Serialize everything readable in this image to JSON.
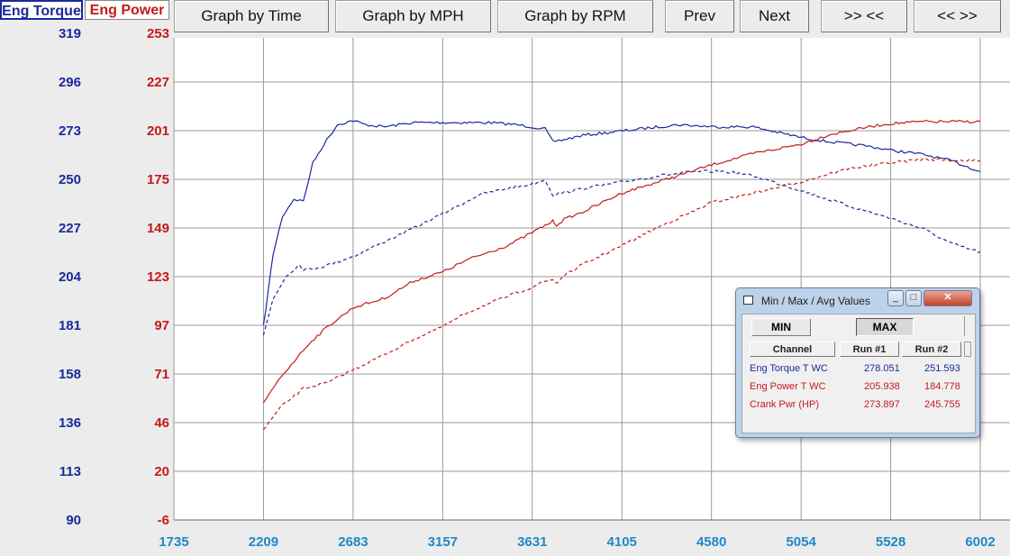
{
  "axis_tabs": {
    "torque": "Eng Torque",
    "power": "Eng Power"
  },
  "toolbar": {
    "graph_time": "Graph by Time",
    "graph_mph": "Graph by MPH",
    "graph_rpm": "Graph by RPM",
    "prev": "Prev",
    "next": "Next",
    "zoom_in": ">> <<",
    "zoom_out": "<< >>"
  },
  "colors": {
    "torque": "#1a2a9a",
    "power": "#c41a1a",
    "xtick": "#1e88c8",
    "grid": "#9a9a9a",
    "plot_bg": "#ffffff"
  },
  "chart_data": {
    "type": "line",
    "xlabel": "",
    "x_ticks": [
      "1735",
      "2209",
      "2683",
      "3157",
      "3631",
      "4105",
      "4580",
      "5054",
      "5528",
      "6002"
    ],
    "xlim": [
      1735,
      6002
    ],
    "y_left": {
      "label": "Eng Torque",
      "ticks": [
        "319",
        "296",
        "273",
        "250",
        "227",
        "204",
        "181",
        "158",
        "136",
        "113",
        "90"
      ],
      "ylim": [
        90,
        319
      ]
    },
    "y_right": {
      "label": "Eng Power",
      "ticks": [
        "253",
        "227",
        "201",
        "175",
        "149",
        "123",
        "97",
        "71",
        "46",
        "20",
        "-6"
      ],
      "ylim": [
        -6,
        253
      ]
    },
    "grid": true,
    "series": [
      {
        "name": "Eng Torque T WC",
        "run": "Run #1",
        "axis": "left",
        "style": "solid",
        "color": "#1a2a9a",
        "points": [
          [
            2209,
            181
          ],
          [
            2260,
            215
          ],
          [
            2310,
            233
          ],
          [
            2370,
            241
          ],
          [
            2420,
            240
          ],
          [
            2470,
            258
          ],
          [
            2530,
            267
          ],
          [
            2600,
            276
          ],
          [
            2683,
            278
          ],
          [
            2750,
            276
          ],
          [
            2850,
            275
          ],
          [
            3000,
            277
          ],
          [
            3200,
            277
          ],
          [
            3400,
            277
          ],
          [
            3550,
            276
          ],
          [
            3700,
            274
          ],
          [
            3740,
            268
          ],
          [
            3800,
            269
          ],
          [
            3900,
            271
          ],
          [
            4000,
            272
          ],
          [
            4200,
            274
          ],
          [
            4400,
            276
          ],
          [
            4600,
            275
          ],
          [
            4800,
            275
          ],
          [
            4900,
            273
          ],
          [
            5054,
            270
          ],
          [
            5200,
            268
          ],
          [
            5400,
            266
          ],
          [
            5528,
            264
          ],
          [
            5700,
            262
          ],
          [
            5850,
            259
          ],
          [
            6002,
            254
          ]
        ]
      },
      {
        "name": "Eng Torque T WC",
        "run": "Run #2",
        "axis": "left",
        "style": "dashed",
        "color": "#1a2a9a",
        "points": [
          [
            2209,
            177
          ],
          [
            2260,
            194
          ],
          [
            2330,
            205
          ],
          [
            2400,
            210
          ],
          [
            2420,
            208
          ],
          [
            2460,
            208
          ],
          [
            2550,
            210
          ],
          [
            2683,
            214
          ],
          [
            2800,
            219
          ],
          [
            2950,
            225
          ],
          [
            3157,
            234
          ],
          [
            3350,
            243
          ],
          [
            3500,
            246
          ],
          [
            3631,
            248
          ],
          [
            3700,
            250
          ],
          [
            3740,
            243
          ],
          [
            3800,
            244
          ],
          [
            3900,
            246
          ],
          [
            4105,
            249
          ],
          [
            4300,
            252
          ],
          [
            4500,
            254
          ],
          [
            4650,
            254
          ],
          [
            4800,
            252
          ],
          [
            5054,
            245
          ],
          [
            5300,
            238
          ],
          [
            5528,
            232
          ],
          [
            5700,
            227
          ],
          [
            5850,
            220
          ],
          [
            6002,
            216
          ]
        ]
      },
      {
        "name": "Eng Power T WC",
        "run": "Run #1",
        "axis": "right",
        "style": "solid",
        "color": "#c41a1a",
        "points": [
          [
            2209,
            56
          ],
          [
            2300,
            70
          ],
          [
            2400,
            82
          ],
          [
            2450,
            88
          ],
          [
            2550,
            97
          ],
          [
            2683,
            107
          ],
          [
            2850,
            112
          ],
          [
            3000,
            121
          ],
          [
            3157,
            126
          ],
          [
            3300,
            133
          ],
          [
            3500,
            140
          ],
          [
            3631,
            147
          ],
          [
            3740,
            153
          ],
          [
            3760,
            151
          ],
          [
            3800,
            154
          ],
          [
            3900,
            158
          ],
          [
            4105,
            168
          ],
          [
            4300,
            174
          ],
          [
            4580,
            183
          ],
          [
            4800,
            189
          ],
          [
            5054,
            194
          ],
          [
            5200,
            199
          ],
          [
            5400,
            203
          ],
          [
            5528,
            205
          ],
          [
            5700,
            206
          ],
          [
            5850,
            206
          ],
          [
            6002,
            206
          ]
        ]
      },
      {
        "name": "Eng Power T WC",
        "run": "Run #2",
        "axis": "right",
        "style": "dashed",
        "color": "#c41a1a",
        "points": [
          [
            2209,
            42
          ],
          [
            2300,
            54
          ],
          [
            2420,
            64
          ],
          [
            2550,
            67
          ],
          [
            2683,
            74
          ],
          [
            2850,
            82
          ],
          [
            3000,
            90
          ],
          [
            3157,
            97
          ],
          [
            3300,
            105
          ],
          [
            3500,
            113
          ],
          [
            3631,
            118
          ],
          [
            3700,
            121
          ],
          [
            3740,
            122
          ],
          [
            3760,
            120
          ],
          [
            3800,
            124
          ],
          [
            3900,
            130
          ],
          [
            4105,
            140
          ],
          [
            4300,
            150
          ],
          [
            4500,
            159
          ],
          [
            4580,
            163
          ],
          [
            4800,
            168
          ],
          [
            5054,
            174
          ],
          [
            5300,
            181
          ],
          [
            5528,
            184
          ],
          [
            5700,
            186
          ],
          [
            6002,
            185
          ]
        ]
      }
    ]
  },
  "minmax_window": {
    "title": "Min / Max / Avg Values",
    "btn_min": "MIN",
    "btn_max": "MAX",
    "columns": [
      "Channel",
      "Run #1",
      "Run #2"
    ],
    "rows": [
      {
        "channel": "Eng Torque T WC",
        "run1": "278.051",
        "run2": "251.593",
        "color": "#1a2a9a"
      },
      {
        "channel": "Eng Power T WC",
        "run1": "205.938",
        "run2": "184.778",
        "color": "#c41a1a"
      },
      {
        "channel": "Crank Pwr (HP)",
        "run1": "273.897",
        "run2": "245.755",
        "color": "#c41a1a"
      }
    ]
  }
}
